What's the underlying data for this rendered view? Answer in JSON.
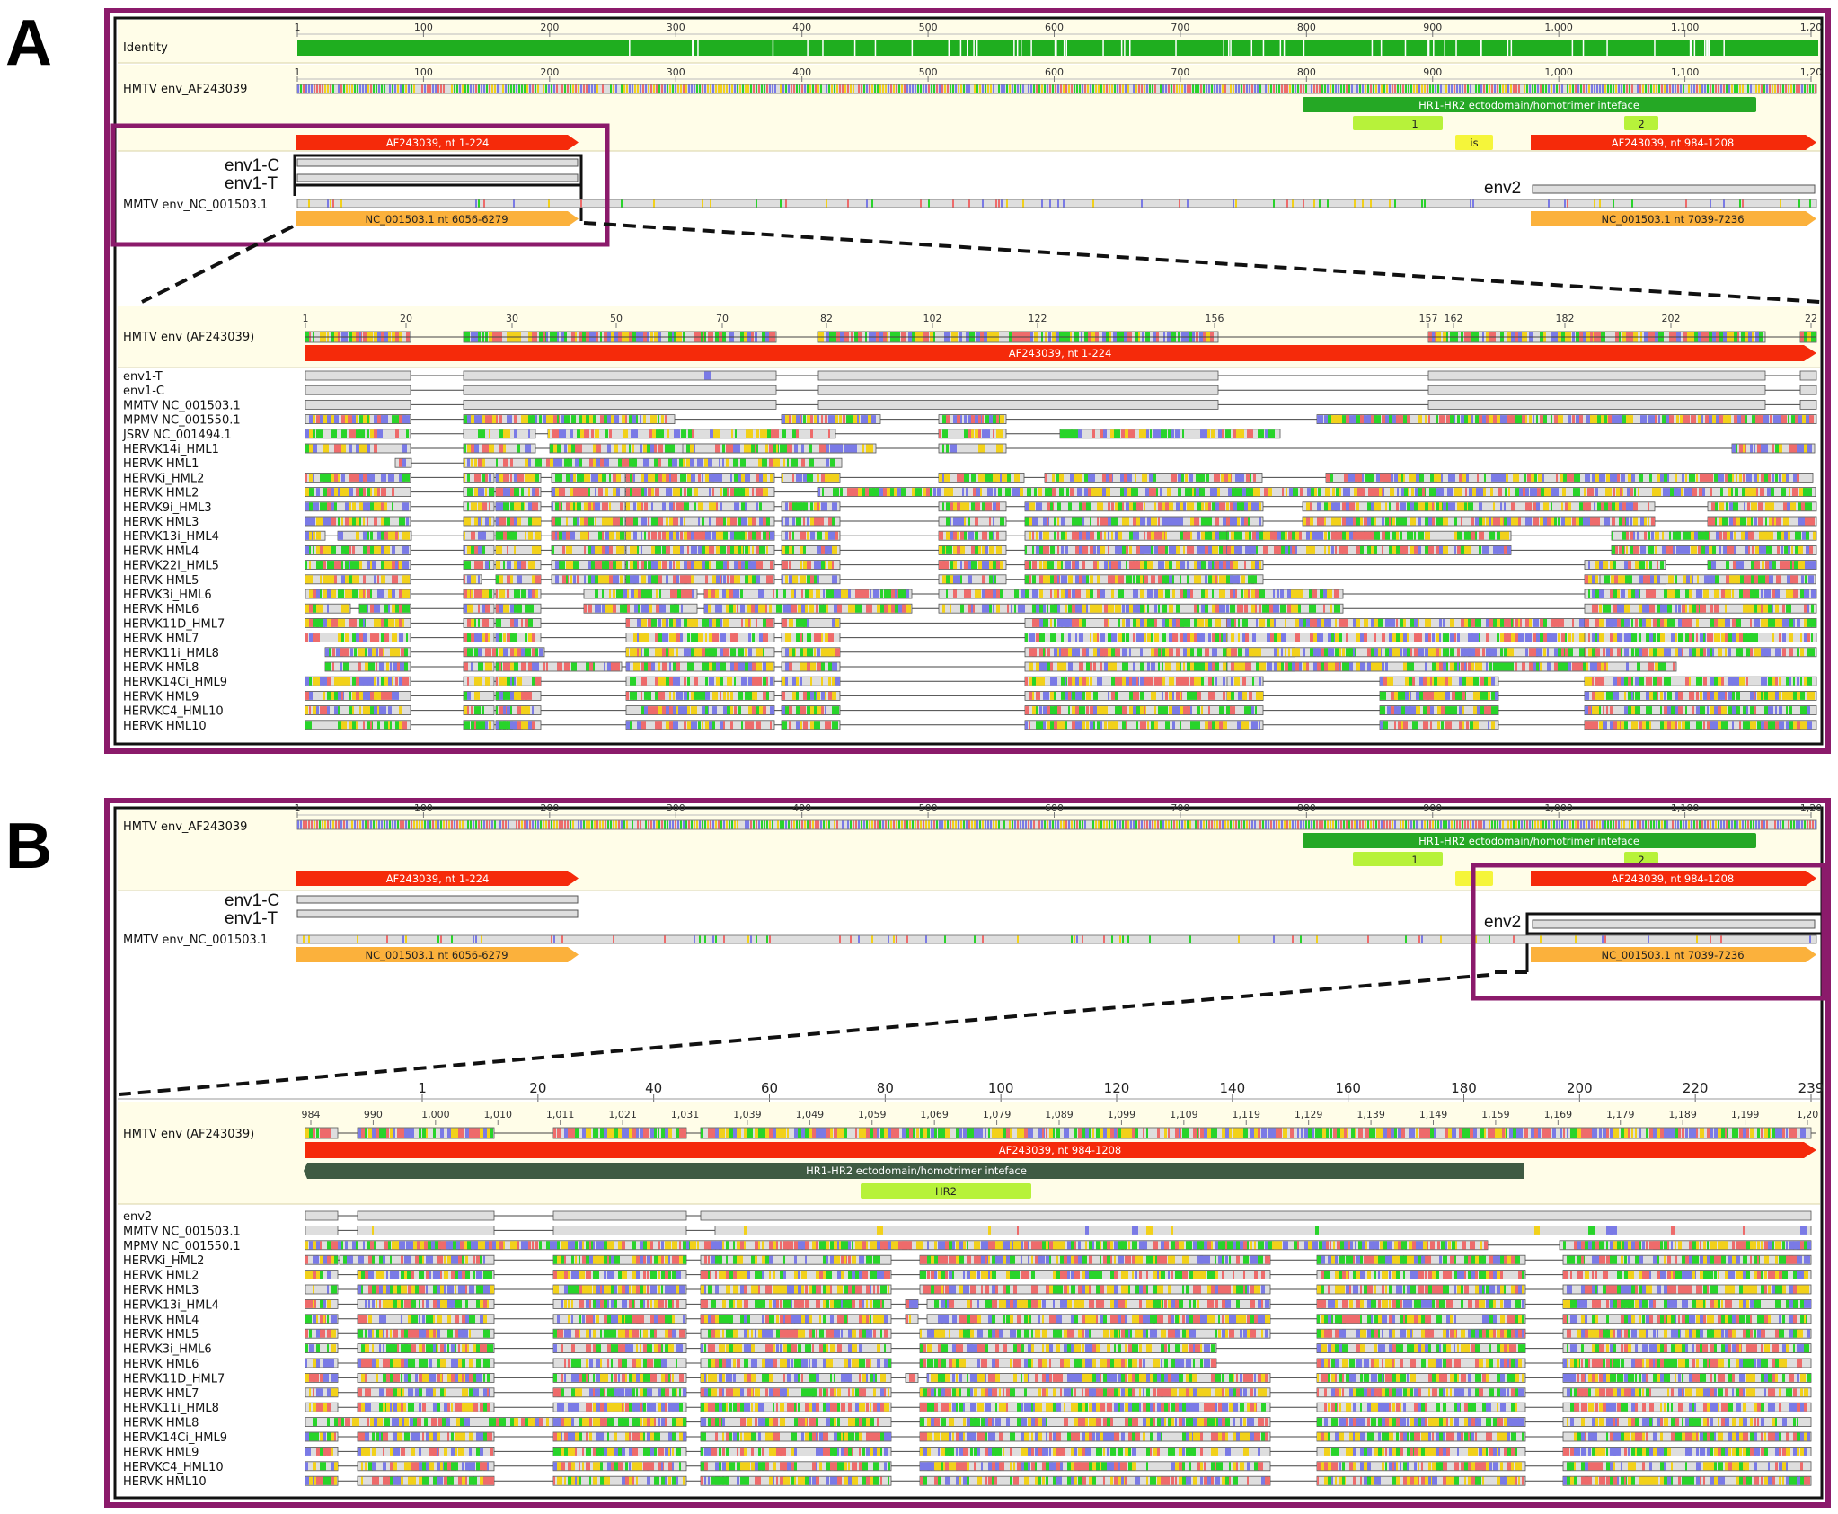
{
  "panels": [
    {
      "letter": "A",
      "top_ruler": [
        "1",
        "100",
        "200",
        "300",
        "400",
        "500",
        "600",
        "700",
        "800",
        "900",
        "1,000",
        "1,100",
        "1,20"
      ],
      "identity_label": "Identity",
      "ref_label": "HMTV env_AF243039",
      "ann_hr": "HR1-HR2 ectodomain/homotrimer inteface",
      "ann_1": "1",
      "ann_2": "2",
      "ann_is": "is",
      "ann_left": "AF243039, nt 1-224",
      "ann_right": "AF243039, nt 984-1208",
      "env1c": "env1-C",
      "env1t": "env1-T",
      "env2": "env2",
      "mmtv_label": "MMTV env_NC_001503.1",
      "mmtv_left": "NC_001503.1 nt 6056-6279",
      "mmtv_right": "NC_001503.1 nt 7039-7236",
      "zoom_ruler": [
        "1",
        "20",
        "30",
        "50",
        "70",
        "82",
        "102",
        "122",
        "156",
        "157",
        "162",
        "182",
        "202",
        "22"
      ],
      "zoom_ref_label": "HMTV env (AF243039)",
      "zoom_ann": "AF243039, nt 1-224",
      "rows": [
        "env1-T",
        "env1-C",
        "MMTV NC_001503.1",
        "MPMV NC_001550.1",
        "JSRV NC_001494.1",
        "HERVK14i_HML1",
        "HERVK HML1",
        "HERVKi_HML2",
        "HERVK HML2",
        "HERVK9i_HML3",
        "HERVK HML3",
        "HERVK13i_HML4",
        "HERVK HML4",
        "HERVK22i_HML5",
        "HERVK HML5",
        "HERVK3i_HML6",
        "HERVK HML6",
        "HERVK11D_HML7",
        "HERVK HML7",
        "HERVK11i_HML8",
        "HERVK HML8",
        "HERVK14Ci_HML9",
        "HERVK HML9",
        "HERVKC4_HML10",
        "HERVK HML10"
      ]
    },
    {
      "letter": "B",
      "ref_label": "HMTV env_AF243039",
      "zoom_big_ruler": [
        "1",
        "20",
        "40",
        "60",
        "80",
        "100",
        "120",
        "140",
        "160",
        "180",
        "200",
        "220",
        "239"
      ],
      "zoom_ruler": [
        "984",
        "990",
        "1,000",
        "1,010",
        "1,011",
        "1,021",
        "1,031",
        "1,039",
        "1,049",
        "1,059",
        "1,069",
        "1,079",
        "1,089",
        "1,099",
        "1,109",
        "1,119",
        "1,129",
        "1,139",
        "1,149",
        "1,159",
        "1,169",
        "1,179",
        "1,189",
        "1,199",
        "1,20"
      ],
      "zoom_ref_label": "HMTV env (AF243039)",
      "zoom_ann": "AF243039, nt 984-1208",
      "zoom_hr": "HR1-HR2 ectodomain/homotrimer inteface",
      "zoom_hr2": "HR2",
      "rows": [
        "env2",
        "MMTV NC_001503.1",
        "MPMV NC_001550.1",
        "HERVKi_HML2",
        "HERVK HML2",
        "HERVK HML3",
        "HERVK13i_HML4",
        "HERVK HML4",
        "HERVK HML5",
        "HERVK3i_HML6",
        "HERVK HML6",
        "HERVK11D_HML7",
        "HERVK HML7",
        "HERVK11i_HML8",
        "HERVK HML8",
        "HERVK14Ci_HML9",
        "HERVK HML9",
        "HERVKC4_HML10",
        "HERVK HML10"
      ]
    }
  ],
  "colors": {
    "frame": "#8b1a6b",
    "panel_bg": "#fffde8",
    "identity": "#1fae1f",
    "red_ann": "#f52a0a",
    "orange_ann": "#fbb13c",
    "hr_green": "#25a825",
    "light_green": "#b7f23a",
    "yellow_ann": "#f5f53a",
    "dark_green": "#3f5b43",
    "seq_grey": "#dedede",
    "nuc_green": "#28d42a",
    "nuc_red": "#ee6b6b",
    "nuc_blue": "#7a7ae6",
    "nuc_yellow": "#f2d11a"
  }
}
